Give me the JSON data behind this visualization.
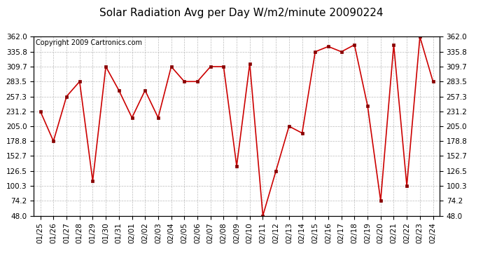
{
  "title": "Solar Radiation Avg per Day W/m2/minute 20090224",
  "copyright": "Copyright 2009 Cartronics.com",
  "dates": [
    "01/25",
    "01/26",
    "01/27",
    "01/28",
    "01/29",
    "01/30",
    "01/31",
    "02/01",
    "02/02",
    "02/03",
    "02/04",
    "02/05",
    "02/06",
    "02/07",
    "02/08",
    "02/09",
    "02/10",
    "02/11",
    "02/12",
    "02/13",
    "02/14",
    "02/15",
    "02/16",
    "02/17",
    "02/18",
    "02/19",
    "02/20",
    "02/21",
    "02/22",
    "02/23",
    "02/24"
  ],
  "values": [
    231.2,
    178.8,
    257.3,
    283.5,
    109.0,
    309.7,
    268.0,
    220.0,
    268.0,
    220.0,
    309.7,
    283.5,
    283.5,
    309.7,
    309.7,
    135.0,
    315.0,
    48.0,
    126.5,
    205.0,
    193.0,
    335.8,
    345.0,
    335.8,
    348.0,
    241.0,
    74.2,
    348.0,
    100.3,
    362.0,
    283.5
  ],
  "line_color": "#cc0000",
  "marker_color": "#880000",
  "bg_color": "#ffffff",
  "grid_color": "#bbbbbb",
  "yticks": [
    48.0,
    74.2,
    100.3,
    126.5,
    152.7,
    178.8,
    205.0,
    231.2,
    257.3,
    283.5,
    309.7,
    335.8,
    362.0
  ],
  "ylim": [
    48.0,
    362.0
  ],
  "title_fontsize": 11,
  "copyright_fontsize": 7,
  "tick_fontsize": 7.5
}
